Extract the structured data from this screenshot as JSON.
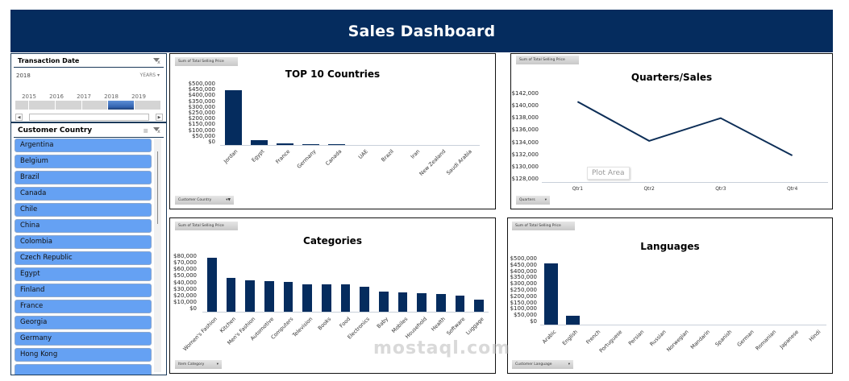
{
  "header": {
    "title": "Sales Dashboard"
  },
  "timeline_slicer": {
    "title": "Transaction Date",
    "selected_year": "2018",
    "period_dropdown": "YEARS",
    "years": [
      "2015",
      "2016",
      "2017",
      "2018",
      "2019"
    ],
    "selected_index": 3
  },
  "country_slicer": {
    "title": "Customer Country",
    "items": [
      "Argentina",
      "Belgium",
      "Brazil",
      "Canada",
      "Chile",
      "China",
      "Colombia",
      "Czech Republic",
      "Egypt",
      "Finland",
      "France",
      "Georgia",
      "Germany",
      "Hong Kong"
    ]
  },
  "charts": {
    "countries": {
      "field_button": "Sum of Total Selling Price",
      "axis_field_button": "Customer Country",
      "title": "TOP 10 Countries",
      "y_ticks": [
        "$500,000",
        "$450,000",
        "$400,000",
        "$350,000",
        "$300,000",
        "$250,000",
        "$200,000",
        "$150,000",
        "$100,000",
        "$50,000",
        "$0"
      ]
    },
    "quarters": {
      "field_button": "Sum of Total Selling Price",
      "axis_field_button": "Quarters",
      "title": "Quarters/Sales",
      "y_ticks": [
        "$142,000",
        "$140,000",
        "$138,000",
        "$136,000",
        "$134,000",
        "$132,000",
        "$130,000",
        "$128,000"
      ],
      "tooltip": "Plot Area"
    },
    "categories": {
      "field_button": "Sum of Total Selling Price",
      "axis_field_button": "Item Category",
      "title": "Categories",
      "y_ticks": [
        "$80,000",
        "$70,000",
        "$60,000",
        "$50,000",
        "$40,000",
        "$30,000",
        "$20,000",
        "$10,000",
        "$0"
      ]
    },
    "languages": {
      "field_button": "Sum of Total Selling Price",
      "axis_field_button": "Customer Language",
      "title": "Languages",
      "y_ticks": [
        "$500,000",
        "$450,000",
        "$400,000",
        "$350,000",
        "$300,000",
        "$250,000",
        "$200,000",
        "$150,000",
        "$100,000",
        "$50,000",
        "$0"
      ]
    }
  },
  "chart_data": [
    {
      "type": "bar",
      "title": "TOP 10 Countries",
      "xlabel": "Customer Country",
      "ylabel": "Sum of Total Selling Price",
      "ylim": [
        0,
        500000
      ],
      "categories": [
        "Jordan",
        "Egypt",
        "France",
        "Germany",
        "Canada",
        "UAE",
        "Brazil",
        "Iran",
        "New Zealand",
        "Saudi Arabia"
      ],
      "values": [
        435000,
        38000,
        14000,
        7000,
        5000,
        0,
        0,
        0,
        0,
        0
      ]
    },
    {
      "type": "line",
      "title": "Quarters/Sales",
      "xlabel": "Quarters",
      "ylabel": "Sum of Total Selling Price",
      "ylim": [
        128000,
        142000
      ],
      "categories": [
        "Qtr1",
        "Qtr2",
        "Qtr3",
        "Qtr4"
      ],
      "values": [
        140700,
        134500,
        138100,
        132200
      ]
    },
    {
      "type": "bar",
      "title": "Categories",
      "xlabel": "Item Category",
      "ylabel": "Sum of Total Selling Price",
      "ylim": [
        0,
        80000
      ],
      "categories": [
        "Women's Fashion",
        "Kitchen",
        "Men's Fashion",
        "Automotive",
        "Computers",
        "Television",
        "Books",
        "Food",
        "Electronics",
        "Baby",
        "Mobiles",
        "Household",
        "Health",
        "Software",
        "Luggage"
      ],
      "values": [
        75000,
        47000,
        44500,
        43000,
        42000,
        38500,
        38500,
        38500,
        35000,
        28000,
        27000,
        26000,
        24500,
        23000,
        17000
      ]
    },
    {
      "type": "bar",
      "title": "Languages",
      "xlabel": "Customer Language",
      "ylabel": "Sum of Total Selling Price",
      "ylim": [
        0,
        500000
      ],
      "categories": [
        "Arabic",
        "English",
        "French",
        "Portuguese",
        "Persian",
        "Russian",
        "Norwegian",
        "Mandarin",
        "Spanish",
        "German",
        "Romanian",
        "Japanese",
        "Hindi"
      ],
      "values": [
        455000,
        65000,
        0,
        0,
        0,
        0,
        0,
        0,
        0,
        0,
        0,
        0,
        0
      ]
    }
  ],
  "watermark": "mostaql.com"
}
